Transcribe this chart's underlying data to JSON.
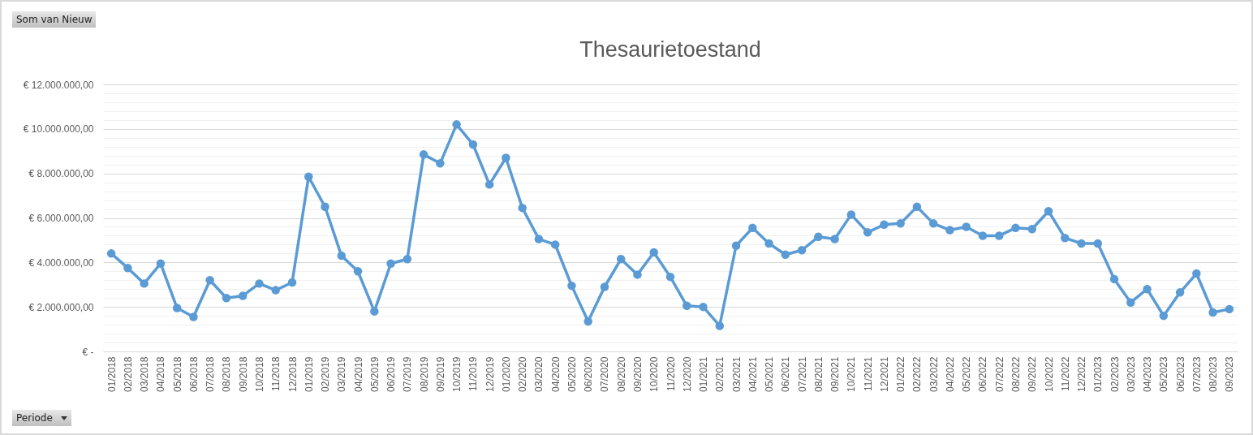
{
  "chart_data": {
    "type": "line",
    "title": "Thesaurietoestand",
    "annotations": [
      "Som van Nieuw",
      "Periode"
    ],
    "categories": [
      "01/2018",
      "02/2018",
      "03/2018",
      "04/2018",
      "05/2018",
      "06/2018",
      "07/2018",
      "08/2018",
      "09/2018",
      "10/2018",
      "11/2018",
      "12/2018",
      "01/2019",
      "02/2019",
      "03/2019",
      "04/2019",
      "05/2019",
      "06/2019",
      "07/2019",
      "08/2019",
      "09/2019",
      "10/2019",
      "11/2019",
      "12/2019",
      "01/2020",
      "02/2020",
      "03/2020",
      "04/2020",
      "05/2020",
      "06/2020",
      "07/2020",
      "08/2020",
      "09/2020",
      "10/2020",
      "11/2020",
      "12/2020",
      "01/2021",
      "02/2021",
      "03/2021",
      "04/2021",
      "05/2021",
      "06/2021",
      "07/2021",
      "08/2021",
      "09/2021",
      "10/2021",
      "11/2021",
      "12/2021",
      "01/2022",
      "02/2022",
      "03/2022",
      "04/2022",
      "05/2022",
      "06/2022",
      "07/2022",
      "08/2022",
      "09/2022",
      "10/2022",
      "11/2022",
      "12/2022",
      "01/2023",
      "02/2023",
      "03/2023",
      "04/2023",
      "05/2023",
      "06/2023",
      "07/2023",
      "08/2023",
      "09/2023"
    ],
    "series": [
      {
        "color": "#5b9bd5",
        "values": [
          4400000,
          3750000,
          3050000,
          3950000,
          1950000,
          1550000,
          3200000,
          2400000,
          2500000,
          3050000,
          2750000,
          3100000,
          7850000,
          6500000,
          4300000,
          3600000,
          1800000,
          3950000,
          4150000,
          8850000,
          8450000,
          10200000,
          9300000,
          7500000,
          8700000,
          6450000,
          5050000,
          4800000,
          2950000,
          1350000,
          2900000,
          4150000,
          3450000,
          4450000,
          3350000,
          2050000,
          2000000,
          1150000,
          4750000,
          5550000,
          4850000,
          4350000,
          4550000,
          5150000,
          5050000,
          6150000,
          5350000,
          5700000,
          5750000,
          6500000,
          5750000,
          5450000,
          5600000,
          5200000,
          5200000,
          5550000,
          5500000,
          6300000,
          5100000,
          4850000,
          4850000,
          3250000,
          2200000,
          2800000,
          1600000,
          2650000,
          3500000,
          1750000,
          1900000
        ]
      }
    ],
    "ylim": [
      0,
      12000000
    ],
    "yticks": [
      {
        "value": 0,
        "label": "€ -"
      },
      {
        "value": 400000,
        "label": null
      },
      {
        "value": 800000,
        "label": null
      },
      {
        "value": 1200000,
        "label": null
      },
      {
        "value": 1600000,
        "label": null
      },
      {
        "value": 2000000,
        "label": "€ 2.000.000,00"
      },
      {
        "value": 2400000,
        "label": null
      },
      {
        "value": 2800000,
        "label": null
      },
      {
        "value": 3200000,
        "label": null
      },
      {
        "value": 3600000,
        "label": null
      },
      {
        "value": 4000000,
        "label": "€ 4.000.000,00"
      },
      {
        "value": 4400000,
        "label": null
      },
      {
        "value": 4800000,
        "label": null
      },
      {
        "value": 5200000,
        "label": null
      },
      {
        "value": 5600000,
        "label": null
      },
      {
        "value": 6000000,
        "label": "€ 6.000.000,00"
      },
      {
        "value": 6400000,
        "label": null
      },
      {
        "value": 6800000,
        "label": null
      },
      {
        "value": 7200000,
        "label": null
      },
      {
        "value": 7600000,
        "label": null
      },
      {
        "value": 8000000,
        "label": "€ 8.000.000,00"
      },
      {
        "value": 8400000,
        "label": null
      },
      {
        "value": 8800000,
        "label": null
      },
      {
        "value": 9200000,
        "label": null
      },
      {
        "value": 9600000,
        "label": null
      },
      {
        "value": 10000000,
        "label": "€ 10.000.000,00"
      },
      {
        "value": 10400000,
        "label": null
      },
      {
        "value": 10800000,
        "label": null
      },
      {
        "value": 11200000,
        "label": null
      },
      {
        "value": 11600000,
        "label": null
      },
      {
        "value": 12000000,
        "label": "€ 12.000.000,00"
      }
    ],
    "grid": "y",
    "legend": false,
    "marker": "circle",
    "line_style": "solid"
  }
}
